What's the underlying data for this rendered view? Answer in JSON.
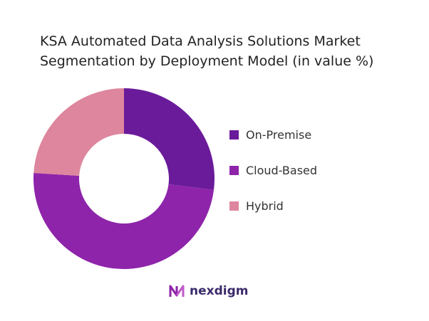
{
  "chart_data": {
    "type": "pie",
    "donut": true,
    "title": "KSA Automated Data Analysis Solutions Market Segmentation by Deployment Model (in value %)",
    "title_lines": [
      "KSA Automated Data Analysis Solutions Market",
      "Segmentation by Deployment Model (in value %)"
    ],
    "categories": [
      "On-Premise",
      "Cloud-Based",
      "Hybrid"
    ],
    "values": [
      27,
      49,
      24
    ],
    "colors": [
      "#6a1b9a",
      "#8e24aa",
      "#dd869d"
    ],
    "legend_position": "right"
  },
  "logo": {
    "text": "nexdigm"
  }
}
